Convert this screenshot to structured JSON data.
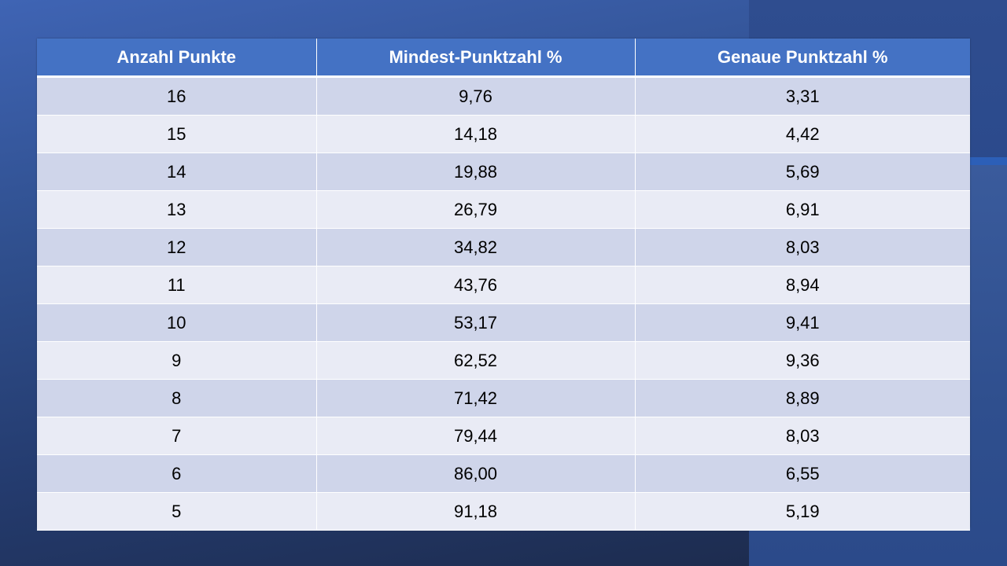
{
  "table": {
    "headers": [
      "Anzahl Punkte",
      "Mindest-Punktzahl %",
      "Genaue Punktzahl %"
    ],
    "rows": [
      [
        "16",
        "9,76",
        "3,31"
      ],
      [
        "15",
        "14,18",
        "4,42"
      ],
      [
        "14",
        "19,88",
        "5,69"
      ],
      [
        "13",
        "26,79",
        "6,91"
      ],
      [
        "12",
        "34,82",
        "8,03"
      ],
      [
        "11",
        "43,76",
        "8,94"
      ],
      [
        "10",
        "53,17",
        "9,41"
      ],
      [
        "9",
        "62,52",
        "9,36"
      ],
      [
        "8",
        "71,42",
        "8,89"
      ],
      [
        "7",
        "79,44",
        "8,03"
      ],
      [
        "6",
        "86,00",
        "6,55"
      ],
      [
        "5",
        "91,18",
        "5,19"
      ]
    ]
  },
  "colors": {
    "header_bg": "#4472c4",
    "row_band_dark": "#cfd5ea",
    "row_band_light": "#e9ebf5",
    "slide_bg": "#2e4a8a"
  }
}
